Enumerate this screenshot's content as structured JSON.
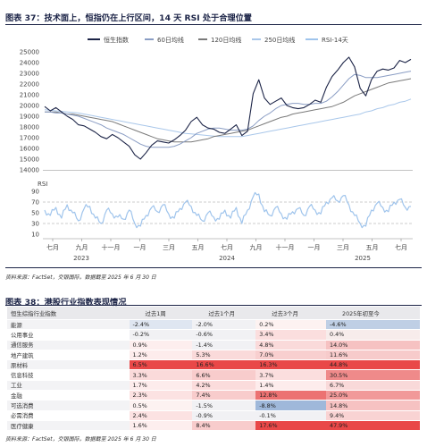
{
  "fig37": {
    "title": "图表 37：技术面上，恒指仍在上行区间，14 天 RSI 处于合理位置",
    "legend": [
      "恒生指数",
      "60日均线",
      "120日均线",
      "250日均线",
      "RSI-14天"
    ],
    "rsi_label": "RSI",
    "source": "资料来源：FactSet，交银国际，数据截至 2025 年 6 月 30 日"
  },
  "chart_data": [
    {
      "type": "line",
      "y_ticks": [
        14000,
        15000,
        16000,
        17000,
        18000,
        19000,
        20000,
        21000,
        22000,
        23000,
        24000,
        25000
      ],
      "ylim": [
        14000,
        25000
      ],
      "x_ticks": [
        "七月",
        "九月",
        "十一月",
        "一月",
        "三月",
        "五月",
        "七月",
        "九月",
        "十一月",
        "一月",
        "三月",
        "五月",
        "七月"
      ],
      "year_labels": [
        "2023",
        "2024",
        "2025"
      ],
      "series": [
        {
          "name": "恒生指数",
          "color": "#1c2447",
          "values": [
            19900,
            19500,
            19800,
            19400,
            19000,
            18700,
            18200,
            18100,
            17800,
            17500,
            17100,
            16900,
            17300,
            17000,
            16600,
            16200,
            15400,
            15000,
            15600,
            16300,
            16700,
            16600,
            16500,
            16800,
            17200,
            17700,
            18500,
            18900,
            18200,
            17900,
            17800,
            17500,
            17400,
            17800,
            18200,
            17200,
            17600,
            21100,
            22400,
            20700,
            20100,
            20400,
            20700,
            20000,
            19800,
            19700,
            19800,
            20100,
            20500,
            20300,
            21700,
            22700,
            23300,
            24000,
            24500,
            23600,
            21600,
            20900,
            22400,
            23200,
            23400,
            23300,
            23500,
            24200,
            24000,
            24300
          ]
        },
        {
          "name": "60日均线",
          "color": "#8a9dc4",
          "values": [
            19400,
            19400,
            19300,
            19300,
            19200,
            19100,
            19000,
            18800,
            18600,
            18400,
            18200,
            17900,
            17700,
            17500,
            17300,
            17000,
            16700,
            16400,
            16200,
            16100,
            16100,
            16100,
            16100,
            16200,
            16400,
            16700,
            17000,
            17400,
            17600,
            17800,
            17900,
            17900,
            17800,
            17700,
            17700,
            17700,
            17800,
            18100,
            18600,
            19000,
            19300,
            19700,
            20000,
            20100,
            20200,
            20200,
            20100,
            20100,
            20200,
            20200,
            20400,
            20800,
            21300,
            21900,
            22500,
            22900,
            22800,
            22600,
            22600,
            22600,
            22700,
            22800,
            22900,
            23000,
            23100,
            23200
          ]
        },
        {
          "name": "120日均线",
          "color": "#7a7a7a",
          "values": [
            19400,
            19400,
            19400,
            19300,
            19200,
            19200,
            19100,
            19000,
            18900,
            18800,
            18700,
            18600,
            18500,
            18300,
            18100,
            17900,
            17700,
            17500,
            17300,
            17100,
            16900,
            16800,
            16700,
            16600,
            16600,
            16600,
            16600,
            16700,
            16800,
            16900,
            17100,
            17200,
            17300,
            17400,
            17500,
            17600,
            17700,
            17900,
            18100,
            18300,
            18500,
            18700,
            18900,
            19000,
            19200,
            19300,
            19400,
            19500,
            19600,
            19700,
            19800,
            19900,
            20100,
            20300,
            20600,
            20900,
            21100,
            21300,
            21500,
            21700,
            21900,
            22100,
            22200,
            22300,
            22400,
            22500
          ]
        },
        {
          "name": "250日均线",
          "color": "#a9c7ea",
          "values": [
            19600,
            19550,
            19500,
            19450,
            19400,
            19350,
            19300,
            19200,
            19100,
            19000,
            18900,
            18800,
            18700,
            18600,
            18500,
            18400,
            18300,
            18200,
            18100,
            18000,
            17900,
            17800,
            17700,
            17600,
            17500,
            17400,
            17350,
            17300,
            17250,
            17200,
            17150,
            17100,
            17100,
            17100,
            17100,
            17100,
            17200,
            17300,
            17400,
            17500,
            17600,
            17700,
            17800,
            17900,
            18000,
            18100,
            18200,
            18300,
            18400,
            18500,
            18600,
            18700,
            18800,
            18900,
            19000,
            19100,
            19200,
            19400,
            19500,
            19700,
            19800,
            20000,
            20100,
            20300,
            20400,
            20600
          ]
        }
      ]
    },
    {
      "type": "line",
      "y_ticks": [
        10,
        30,
        50,
        70,
        90
      ],
      "ylim": [
        10,
        90
      ],
      "reference_lines": [
        30,
        70
      ],
      "series": [
        {
          "name": "RSI-14天",
          "color": "#9fc4ec",
          "values": [
            55,
            45,
            60,
            40,
            65,
            50,
            35,
            58,
            62,
            40,
            30,
            55,
            48,
            42,
            38,
            55,
            30,
            25,
            45,
            60,
            52,
            65,
            48,
            40,
            58,
            70,
            62,
            45,
            35,
            50,
            42,
            38,
            55,
            40,
            60,
            30,
            55,
            80,
            85,
            52,
            45,
            60,
            48,
            38,
            52,
            58,
            45,
            62,
            55,
            48,
            70,
            78,
            72,
            82,
            65,
            45,
            30,
            25,
            55,
            68,
            60,
            52,
            70,
            75,
            60,
            62
          ]
        }
      ]
    },
    {
      "type": "table",
      "title": "图表 38：港股行业指数表现情况",
      "columns": [
        "恒生综指行业指数",
        "过去1周",
        "过去1个月",
        "过去3个月",
        "2025年初至今"
      ],
      "rows": [
        [
          "能源",
          "-2.4%",
          "-2.0%",
          "0.2%",
          "-4.6%"
        ],
        [
          "公用事业",
          "-0.2%",
          "-0.6%",
          "3.4%",
          "0.4%"
        ],
        [
          "通信服务",
          "0.9%",
          "-1.4%",
          "4.8%",
          "14.0%"
        ],
        [
          "地产建筑",
          "1.2%",
          "5.3%",
          "7.0%",
          "11.6%"
        ],
        [
          "原材料",
          "6.5%",
          "16.6%",
          "16.3%",
          "44.8%"
        ],
        [
          "信息科技",
          "3.3%",
          "6.6%",
          "3.7%",
          "30.5%"
        ],
        [
          "工业",
          "1.7%",
          "4.2%",
          "1.4%",
          "6.7%"
        ],
        [
          "金融",
          "2.3%",
          "7.4%",
          "12.8%",
          "25.0%"
        ],
        [
          "可选消费",
          "0.5%",
          "-1.5%",
          "-8.8%",
          "14.8%"
        ],
        [
          "必需消费",
          "2.4%",
          "-0.9%",
          "-0.1%",
          "9.4%"
        ],
        [
          "医疗健康",
          "1.6%",
          "8.4%",
          "17.6%",
          "47.9%"
        ]
      ],
      "cell_colors": [
        [
          "#dfe6f1",
          "#f1f1f4",
          "#fdf2f1",
          "#bfcfe5"
        ],
        [
          "#f1f1f4",
          "#f1f1f4",
          "#fbdede",
          "#f7eceb"
        ],
        [
          "#fdeeee",
          "#f1f1f4",
          "#fadada",
          "#f6c2c2"
        ],
        [
          "#fdecec",
          "#fadada",
          "#f8cfcf",
          "#f7cbcb"
        ],
        [
          "#e94848",
          "#e94848",
          "#e94848",
          "#e94848"
        ],
        [
          "#fadada",
          "#f8cccc",
          "#fbdede",
          "#ef8a8a"
        ],
        [
          "#fdecec",
          "#fbdcdc",
          "#fdecec",
          "#f9d9d9"
        ],
        [
          "#fce2e2",
          "#f8cccc",
          "#ec7272",
          "#f19999"
        ],
        [
          "#fdf2f1",
          "#f1f1f4",
          "#9fb8da",
          "#f6c2c2"
        ],
        [
          "#fce2e2",
          "#f1f1f4",
          "#f1f1f4",
          "#f9d3d3"
        ],
        [
          "#fdeeee",
          "#f8cccc",
          "#e94848",
          "#e94848"
        ]
      ]
    }
  ],
  "fig38": {
    "title": "图表 38：港股行业指数表现情况",
    "source": "资料来源：FactSet，交银国际，数据截至 2025 年 6 月 30 日",
    "watermark": "信公"
  }
}
